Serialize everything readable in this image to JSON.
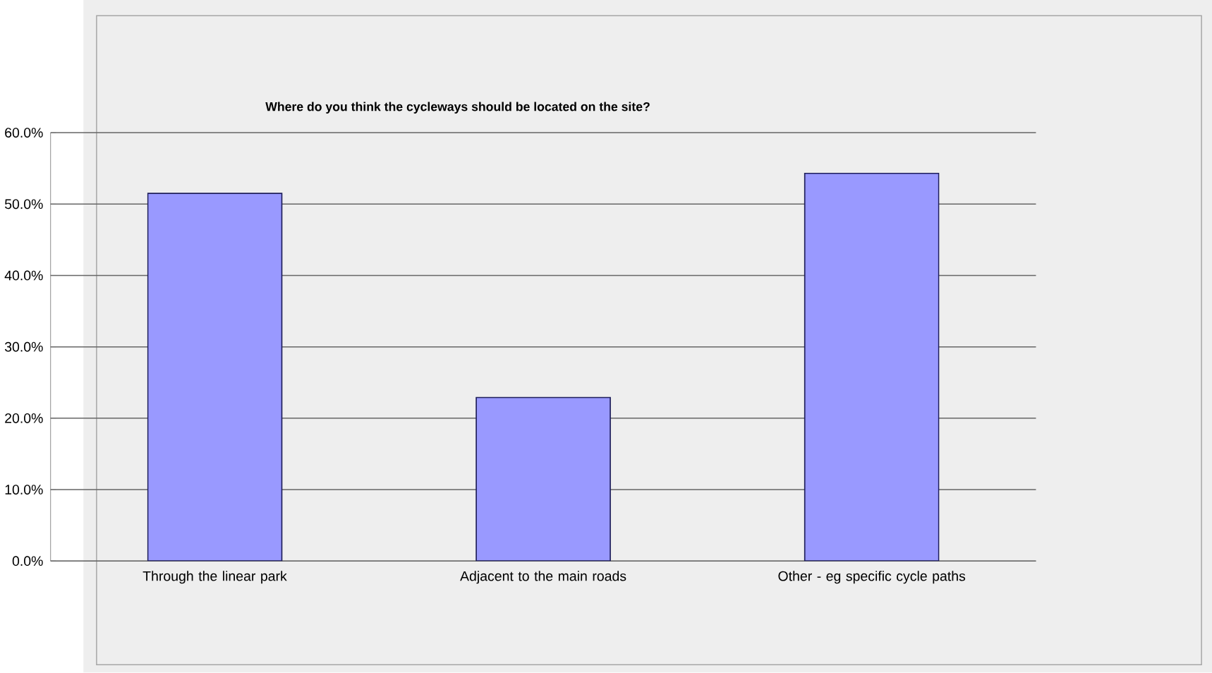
{
  "chart_data": {
    "type": "bar",
    "title": "Where do you think the cycleways should be located on the site?",
    "categories": [
      "Through the linear park",
      "Adjacent to the main roads",
      "Other - eg specific cycle paths"
    ],
    "values": [
      51.5,
      22.9,
      54.3
    ],
    "color": "#9999ff",
    "ylim": [
      0,
      60
    ],
    "yticks": [
      {
        "value": 0,
        "label": "0.0%"
      },
      {
        "value": 10,
        "label": "10.0%"
      },
      {
        "value": 20,
        "label": "20.0%"
      },
      {
        "value": 30,
        "label": "30.0%"
      },
      {
        "value": 40,
        "label": "40.0%"
      },
      {
        "value": 50,
        "label": "50.0%"
      },
      {
        "value": 60,
        "label": "60.0%"
      }
    ],
    "grid": "y"
  }
}
